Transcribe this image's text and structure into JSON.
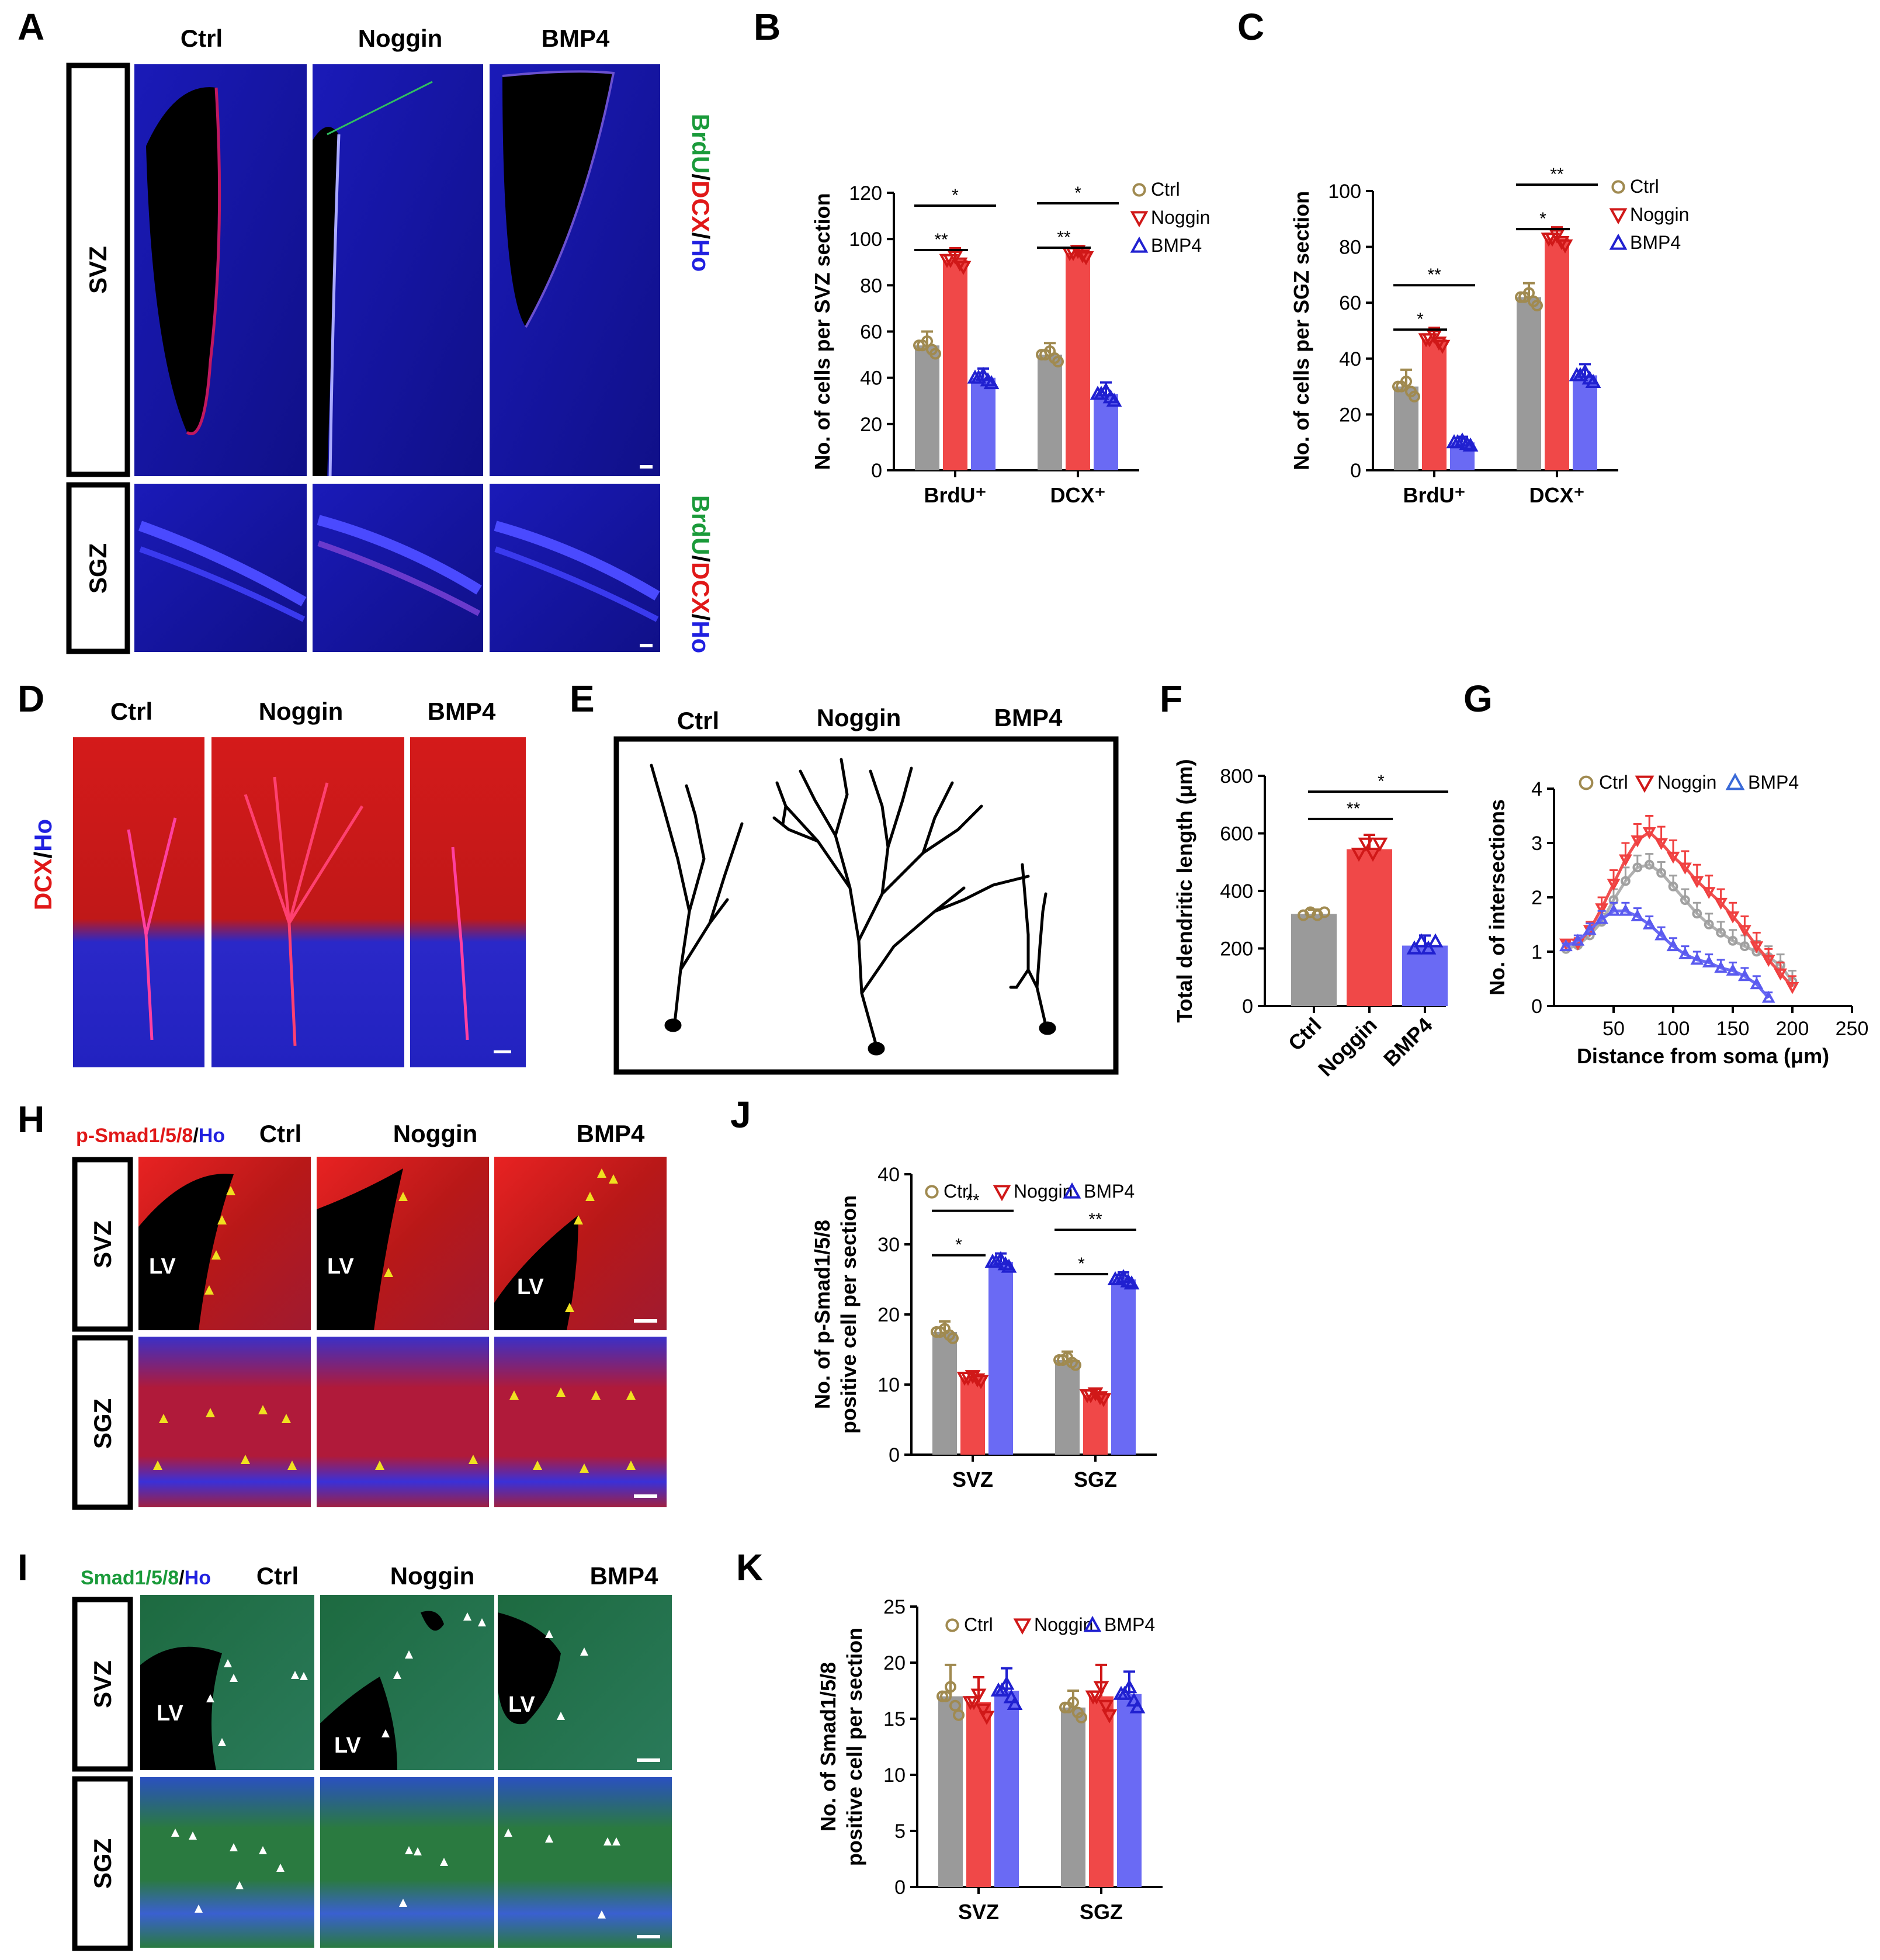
{
  "colors": {
    "ctrl": "#9a9a9a",
    "noggin": "#f04848",
    "bmp4": "#6a6af4",
    "ctrl_marker": "#a08a50",
    "noggin_marker": "#d01818",
    "bmp4_marker": "#2020d0",
    "green": "#1a9a3a",
    "red": "#e01818",
    "blue": "#2020e0"
  },
  "panels": {
    "A": {
      "label": "A",
      "headers": [
        "Ctrl",
        "Noggin",
        "BMP4"
      ],
      "rows": [
        "SVZ",
        "SGZ"
      ],
      "stain": [
        {
          "t": "BrdU",
          "c": "green"
        },
        {
          "t": "/",
          "c": "black"
        },
        {
          "t": "DCX",
          "c": "red"
        },
        {
          "t": "/",
          "c": "black"
        },
        {
          "t": "Ho",
          "c": "blue"
        }
      ]
    },
    "D": {
      "label": "D",
      "headers": [
        "Ctrl",
        "Noggin",
        "BMP4"
      ],
      "stain": [
        {
          "t": "DCX",
          "c": "red"
        },
        {
          "t": "/",
          "c": "black"
        },
        {
          "t": "Ho",
          "c": "blue"
        }
      ]
    },
    "E": {
      "label": "E",
      "headers": [
        "Ctrl",
        "Noggin",
        "BMP4"
      ],
      "subject": "dendrite-tracing"
    },
    "H": {
      "label": "H",
      "headers": [
        "Ctrl",
        "Noggin",
        "BMP4"
      ],
      "rows": [
        "SVZ",
        "SGZ"
      ],
      "lv": "LV",
      "stain": [
        {
          "t": "p-Smad1/5/8",
          "c": "red"
        },
        {
          "t": "/",
          "c": "black"
        },
        {
          "t": "Ho",
          "c": "blue"
        }
      ]
    },
    "I": {
      "label": "I",
      "headers": [
        "Ctrl",
        "Noggin",
        "BMP4"
      ],
      "rows": [
        "SVZ",
        "SGZ"
      ],
      "lv": "LV",
      "stain": [
        {
          "t": "Smad1/5/8",
          "c": "green"
        },
        {
          "t": "/",
          "c": "black"
        },
        {
          "t": "Ho",
          "c": "blue"
        }
      ]
    }
  },
  "chart_data": [
    {
      "id": "B",
      "label": "B",
      "type": "bar",
      "categories": [
        "BrdU⁺",
        "DCX⁺"
      ],
      "series": [
        {
          "name": "Ctrl",
          "values": [
            54,
            50
          ],
          "err": [
            6,
            5
          ]
        },
        {
          "name": "Noggin",
          "values": [
            91,
            94
          ],
          "err": [
            5,
            3
          ]
        },
        {
          "name": "BMP4",
          "values": [
            40,
            33
          ],
          "err": [
            4,
            5
          ]
        }
      ],
      "ylabel": "No. of cells per SVZ section",
      "ylim": [
        0,
        120
      ],
      "ticks": [
        0,
        20,
        40,
        60,
        80,
        100,
        120
      ],
      "sig": [
        {
          "cat": 0,
          "to": 2,
          "text": "*"
        },
        {
          "cat": 0,
          "to": 1,
          "text": "**"
        },
        {
          "cat": 1,
          "to": 2,
          "text": "*"
        },
        {
          "cat": 1,
          "to": 1,
          "text": "**"
        }
      ]
    },
    {
      "id": "C",
      "label": "C",
      "type": "bar",
      "categories": [
        "BrdU⁺",
        "DCX⁺"
      ],
      "series": [
        {
          "name": "Ctrl",
          "values": [
            30,
            62
          ],
          "err": [
            6,
            5
          ]
        },
        {
          "name": "Noggin",
          "values": [
            47,
            83
          ],
          "err": [
            4,
            4
          ]
        },
        {
          "name": "BMP4",
          "values": [
            10,
            34
          ],
          "err": [
            2,
            4
          ]
        }
      ],
      "ylabel": "No. of cells per SGZ section",
      "ylim": [
        0,
        100
      ],
      "ticks": [
        0,
        20,
        40,
        60,
        80,
        100
      ],
      "sig": [
        {
          "cat": 0,
          "to": 2,
          "text": "**"
        },
        {
          "cat": 0,
          "to": 1,
          "text": "*"
        },
        {
          "cat": 1,
          "to": 2,
          "text": "**"
        },
        {
          "cat": 1,
          "to": 1,
          "text": "*"
        }
      ]
    },
    {
      "id": "F",
      "label": "F",
      "type": "bar",
      "categories": [
        "Ctrl",
        "Noggin",
        "BMP4"
      ],
      "values": [
        320,
        545,
        210
      ],
      "err": [
        15,
        50,
        35
      ],
      "ylabel": "Total dendritic length (μm)",
      "ylim": [
        0,
        800
      ],
      "ticks": [
        0,
        200,
        400,
        600,
        800
      ],
      "sig": [
        {
          "from": 0,
          "to": 2,
          "text": "*"
        },
        {
          "from": 0,
          "to": 1,
          "text": "**"
        }
      ]
    },
    {
      "id": "G",
      "label": "G",
      "type": "line",
      "xlabel": "Distance from soma (μm)",
      "ylabel": "No. of intersections",
      "xlim": [
        0,
        250
      ],
      "ylim": [
        0,
        4
      ],
      "xticks": [
        50,
        100,
        150,
        200,
        250
      ],
      "yticks": [
        0,
        1,
        2,
        3,
        4
      ],
      "series": [
        {
          "name": "Ctrl",
          "x": [
            10,
            20,
            30,
            40,
            50,
            60,
            70,
            80,
            90,
            100,
            110,
            120,
            130,
            140,
            150,
            160,
            170,
            180,
            190,
            200
          ],
          "y": [
            1.05,
            1.12,
            1.3,
            1.55,
            1.95,
            2.3,
            2.55,
            2.6,
            2.45,
            2.2,
            1.95,
            1.7,
            1.5,
            1.35,
            1.2,
            1.1,
            1.0,
            0.9,
            0.75,
            0.45
          ],
          "err": [
            0.05,
            0.08,
            0.12,
            0.15,
            0.2,
            0.25,
            0.22,
            0.2,
            0.2,
            0.2,
            0.2,
            0.2,
            0.2,
            0.2,
            0.2,
            0.2,
            0.2,
            0.2,
            0.2,
            0.2
          ]
        },
        {
          "name": "Noggin",
          "x": [
            10,
            20,
            30,
            40,
            50,
            60,
            70,
            80,
            90,
            100,
            110,
            120,
            130,
            140,
            150,
            160,
            170,
            180,
            190,
            200
          ],
          "y": [
            1.15,
            1.15,
            1.4,
            1.8,
            2.25,
            2.7,
            3.05,
            3.2,
            3.0,
            2.75,
            2.55,
            2.3,
            2.1,
            1.9,
            1.65,
            1.4,
            1.1,
            0.85,
            0.6,
            0.35
          ],
          "err": [
            0.05,
            0.1,
            0.15,
            0.2,
            0.25,
            0.3,
            0.3,
            0.3,
            0.3,
            0.3,
            0.3,
            0.3,
            0.3,
            0.25,
            0.25,
            0.25,
            0.25,
            0.2,
            0.2,
            0.2
          ]
        },
        {
          "name": "BMP4",
          "x": [
            10,
            20,
            30,
            40,
            50,
            60,
            70,
            80,
            90,
            100,
            110,
            120,
            130,
            140,
            150,
            160,
            170,
            180
          ],
          "y": [
            1.1,
            1.2,
            1.4,
            1.6,
            1.75,
            1.75,
            1.65,
            1.5,
            1.3,
            1.1,
            0.95,
            0.85,
            0.8,
            0.7,
            0.65,
            0.55,
            0.4,
            0.15
          ],
          "err": [
            0.05,
            0.1,
            0.12,
            0.15,
            0.15,
            0.15,
            0.15,
            0.15,
            0.15,
            0.15,
            0.15,
            0.15,
            0.15,
            0.15,
            0.15,
            0.15,
            0.15,
            0.1
          ]
        }
      ]
    },
    {
      "id": "J",
      "label": "J",
      "type": "bar",
      "categories": [
        "SVZ",
        "SGZ"
      ],
      "series": [
        {
          "name": "Ctrl",
          "values": [
            17.5,
            13.5
          ],
          "err": [
            1.5,
            1.2
          ]
        },
        {
          "name": "Noggin",
          "values": [
            11,
            8.5
          ],
          "err": [
            0.8,
            0.9
          ]
        },
        {
          "name": "BMP4",
          "values": [
            27.5,
            25
          ],
          "err": [
            1.2,
            1.0
          ]
        }
      ],
      "ylabel": "No. of p-Smad1/5/8 positive cell per section",
      "ylim": [
        0,
        40
      ],
      "ticks": [
        0,
        10,
        20,
        30,
        40
      ],
      "sig": [
        {
          "cat": 0,
          "to": 2,
          "text": "**"
        },
        {
          "cat": 0,
          "to": 1,
          "text": "*"
        },
        {
          "cat": 1,
          "to": 2,
          "text": "**"
        },
        {
          "cat": 1,
          "to": 1,
          "text": "*"
        }
      ]
    },
    {
      "id": "K",
      "label": "K",
      "type": "bar",
      "categories": [
        "SVZ",
        "SGZ"
      ],
      "series": [
        {
          "name": "Ctrl",
          "values": [
            17,
            16
          ],
          "err": [
            2.8,
            1.5
          ]
        },
        {
          "name": "Noggin",
          "values": [
            16.5,
            17
          ],
          "err": [
            2.2,
            2.8
          ]
        },
        {
          "name": "BMP4",
          "values": [
            17.5,
            17.2
          ],
          "err": [
            2.0,
            2.0
          ]
        }
      ],
      "ylabel": "No. of Smad1/5/8 positive cell per section",
      "ylim": [
        0,
        25
      ],
      "ticks": [
        0,
        5,
        10,
        15,
        20,
        25
      ],
      "sig": []
    }
  ]
}
